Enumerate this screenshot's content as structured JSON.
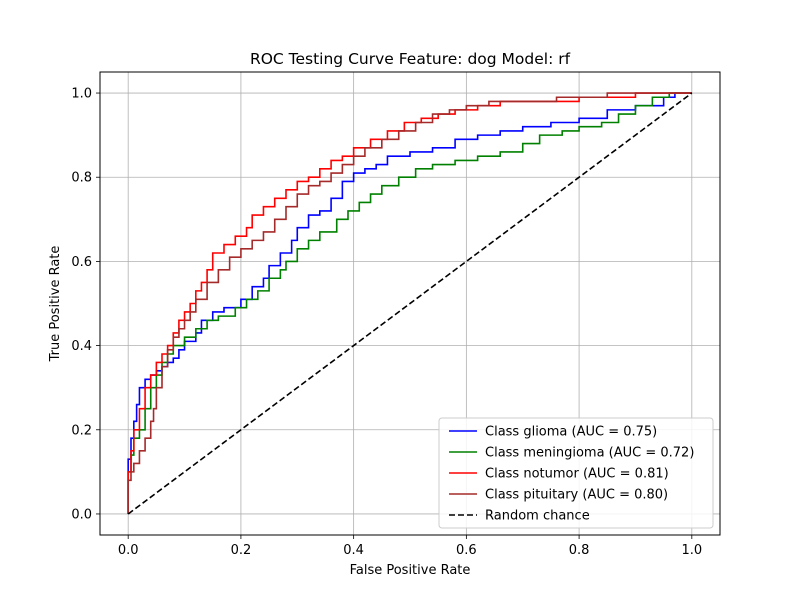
{
  "chart_data": {
    "type": "line",
    "title": "ROC Testing Curve Feature: dog Model: rf",
    "xlabel": "False Positive Rate",
    "ylabel": "True Positive Rate",
    "xlim": [
      -0.05,
      1.05
    ],
    "ylim": [
      -0.05,
      1.05
    ],
    "xticks": [
      0.0,
      0.2,
      0.4,
      0.6,
      0.8,
      1.0
    ],
    "yticks": [
      0.0,
      0.2,
      0.4,
      0.6,
      0.8,
      1.0
    ],
    "xtick_labels": [
      "0.0",
      "0.2",
      "0.4",
      "0.6",
      "0.8",
      "1.0"
    ],
    "ytick_labels": [
      "0.0",
      "0.2",
      "0.4",
      "0.6",
      "0.8",
      "1.0"
    ],
    "grid": true,
    "legend_position": "lower-right",
    "series": [
      {
        "name": "Class glioma (AUC = 0.75)",
        "color": "#0000ff",
        "x": [
          0.0,
          0.0,
          0.005,
          0.01,
          0.015,
          0.02,
          0.03,
          0.04,
          0.05,
          0.06,
          0.07,
          0.08,
          0.09,
          0.1,
          0.12,
          0.13,
          0.15,
          0.17,
          0.2,
          0.22,
          0.24,
          0.25,
          0.27,
          0.29,
          0.3,
          0.32,
          0.34,
          0.36,
          0.38,
          0.4,
          0.42,
          0.44,
          0.46,
          0.5,
          0.54,
          0.58,
          0.62,
          0.66,
          0.7,
          0.75,
          0.8,
          0.85,
          0.9,
          0.93,
          0.95,
          0.97,
          1.0
        ],
        "y": [
          0.0,
          0.06,
          0.13,
          0.18,
          0.22,
          0.26,
          0.3,
          0.32,
          0.33,
          0.34,
          0.35,
          0.36,
          0.37,
          0.39,
          0.41,
          0.43,
          0.46,
          0.48,
          0.49,
          0.51,
          0.54,
          0.56,
          0.59,
          0.62,
          0.65,
          0.68,
          0.71,
          0.72,
          0.75,
          0.79,
          0.81,
          0.82,
          0.83,
          0.85,
          0.86,
          0.87,
          0.89,
          0.9,
          0.91,
          0.92,
          0.93,
          0.94,
          0.96,
          0.97,
          0.97,
          0.99,
          1.0
        ]
      },
      {
        "name": "Class meningioma (AUC = 0.72)",
        "color": "#008000",
        "x": [
          0.0,
          0.0,
          0.005,
          0.01,
          0.02,
          0.03,
          0.04,
          0.05,
          0.06,
          0.07,
          0.08,
          0.1,
          0.12,
          0.14,
          0.16,
          0.19,
          0.21,
          0.23,
          0.25,
          0.27,
          0.28,
          0.3,
          0.32,
          0.34,
          0.37,
          0.39,
          0.41,
          0.43,
          0.45,
          0.48,
          0.51,
          0.54,
          0.58,
          0.62,
          0.66,
          0.7,
          0.73,
          0.77,
          0.8,
          0.84,
          0.87,
          0.9,
          0.93,
          0.96,
          1.0
        ],
        "y": [
          0.0,
          0.05,
          0.1,
          0.14,
          0.18,
          0.2,
          0.25,
          0.3,
          0.33,
          0.36,
          0.38,
          0.4,
          0.42,
          0.44,
          0.46,
          0.47,
          0.49,
          0.51,
          0.53,
          0.56,
          0.58,
          0.6,
          0.63,
          0.65,
          0.67,
          0.7,
          0.72,
          0.74,
          0.76,
          0.78,
          0.8,
          0.82,
          0.83,
          0.84,
          0.85,
          0.86,
          0.88,
          0.9,
          0.91,
          0.92,
          0.93,
          0.95,
          0.97,
          0.99,
          1.0
        ]
      },
      {
        "name": "Class notumor (AUC = 0.81)",
        "color": "#ff0000",
        "x": [
          0.0,
          0.0,
          0.005,
          0.01,
          0.02,
          0.03,
          0.04,
          0.05,
          0.06,
          0.07,
          0.08,
          0.09,
          0.1,
          0.11,
          0.12,
          0.13,
          0.14,
          0.15,
          0.17,
          0.19,
          0.21,
          0.22,
          0.24,
          0.26,
          0.28,
          0.3,
          0.32,
          0.34,
          0.36,
          0.38,
          0.4,
          0.43,
          0.46,
          0.49,
          0.52,
          0.55,
          0.58,
          0.62,
          0.66,
          0.7,
          0.75,
          0.8,
          0.85,
          0.9,
          0.95,
          1.0
        ],
        "y": [
          0.0,
          0.04,
          0.1,
          0.15,
          0.2,
          0.25,
          0.3,
          0.33,
          0.36,
          0.38,
          0.4,
          0.43,
          0.46,
          0.48,
          0.5,
          0.53,
          0.55,
          0.58,
          0.62,
          0.64,
          0.66,
          0.68,
          0.71,
          0.73,
          0.75,
          0.77,
          0.79,
          0.8,
          0.82,
          0.84,
          0.85,
          0.87,
          0.89,
          0.91,
          0.93,
          0.94,
          0.95,
          0.96,
          0.97,
          0.98,
          0.98,
          0.98,
          0.99,
          0.99,
          1.0,
          1.0
        ]
      },
      {
        "name": "Class pituitary (AUC = 0.80)",
        "color": "#a52a2a",
        "x": [
          0.0,
          0.0,
          0.005,
          0.01,
          0.02,
          0.03,
          0.04,
          0.045,
          0.05,
          0.06,
          0.07,
          0.08,
          0.09,
          0.1,
          0.11,
          0.12,
          0.14,
          0.16,
          0.18,
          0.2,
          0.22,
          0.24,
          0.26,
          0.28,
          0.3,
          0.32,
          0.34,
          0.36,
          0.38,
          0.4,
          0.42,
          0.45,
          0.48,
          0.51,
          0.54,
          0.57,
          0.6,
          0.64,
          0.68,
          0.72,
          0.76,
          0.8,
          0.85,
          0.9,
          0.95,
          1.0
        ],
        "y": [
          0.0,
          0.03,
          0.08,
          0.1,
          0.12,
          0.15,
          0.18,
          0.22,
          0.25,
          0.3,
          0.35,
          0.39,
          0.42,
          0.44,
          0.46,
          0.48,
          0.51,
          0.55,
          0.58,
          0.61,
          0.63,
          0.65,
          0.67,
          0.7,
          0.73,
          0.76,
          0.78,
          0.79,
          0.81,
          0.83,
          0.85,
          0.87,
          0.89,
          0.91,
          0.93,
          0.95,
          0.96,
          0.97,
          0.98,
          0.98,
          0.98,
          0.99,
          0.99,
          1.0,
          1.0,
          1.0
        ]
      },
      {
        "name": "Random chance",
        "color": "#000000",
        "dashed": true,
        "x": [
          0.0,
          1.0
        ],
        "y": [
          0.0,
          1.0
        ]
      }
    ]
  }
}
